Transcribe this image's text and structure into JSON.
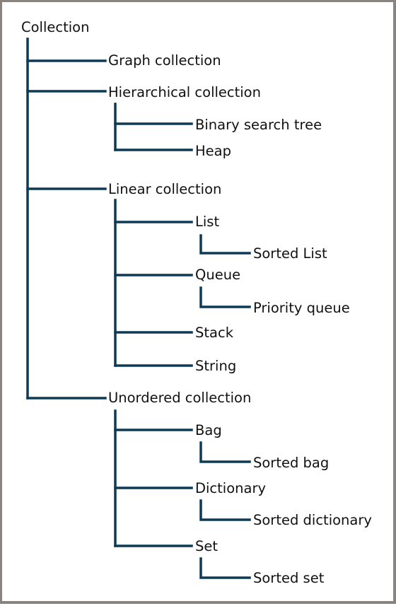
{
  "colors": {
    "connector": "#0d3a55",
    "text": "#111111",
    "border": "#8a8480"
  },
  "tree": {
    "root": "Collection",
    "graph": "Graph collection",
    "hierarchical": "Hierarchical collection",
    "binary_search_tree": "Binary search tree",
    "heap": "Heap",
    "linear": "Linear collection",
    "list": "List",
    "sorted_list": "Sorted List",
    "queue": "Queue",
    "priority_queue": "Priority queue",
    "stack": "Stack",
    "string": "String",
    "unordered": "Unordered collection",
    "bag": "Bag",
    "sorted_bag": "Sorted bag",
    "dictionary": "Dictionary",
    "sorted_dictionary": "Sorted dictionary",
    "set": "Set",
    "sorted_set": "Sorted set"
  }
}
